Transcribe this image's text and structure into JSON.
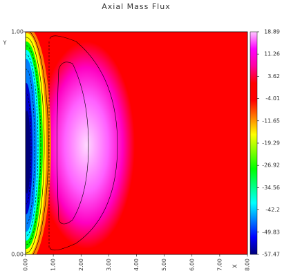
{
  "chart_data": {
    "type": "contour",
    "title": "Axial Mass Flux",
    "x_label": "X",
    "y_label": "Y",
    "xlim": [
      0,
      8
    ],
    "xticks": [
      {
        "value": 0,
        "label": "0.00"
      },
      {
        "value": 1,
        "label": "1.00"
      },
      {
        "value": 2,
        "label": "2.00"
      },
      {
        "value": 3,
        "label": "3.00"
      },
      {
        "value": 4,
        "label": "4.00"
      },
      {
        "value": 5,
        "label": "5.00"
      },
      {
        "value": 6,
        "label": "6.00"
      },
      {
        "value": 7,
        "label": "7.00"
      },
      {
        "value": 8,
        "label": "8.00"
      }
    ],
    "ylim": [
      0,
      1
    ],
    "yticks": [
      {
        "value": 0,
        "label": "0.00"
      },
      {
        "value": 1,
        "label": "1.00"
      }
    ],
    "zlim": [
      -57.47,
      18.89
    ],
    "zticks": [
      18.89,
      11.26,
      3.62,
      -4.01,
      -11.65,
      -19.29,
      -26.92,
      -34.56,
      -42.2,
      -49.83,
      -57.47
    ],
    "colorscale": [
      "#00007a",
      "#0000ff",
      "#0080ff",
      "#00ffff",
      "#00ff80",
      "#00ff00",
      "#80ff00",
      "#ffff00",
      "#ff8000",
      "#ff0000",
      "#ff0000",
      "#ff00a0",
      "#ff00ff",
      "#ffc8ff"
    ]
  }
}
